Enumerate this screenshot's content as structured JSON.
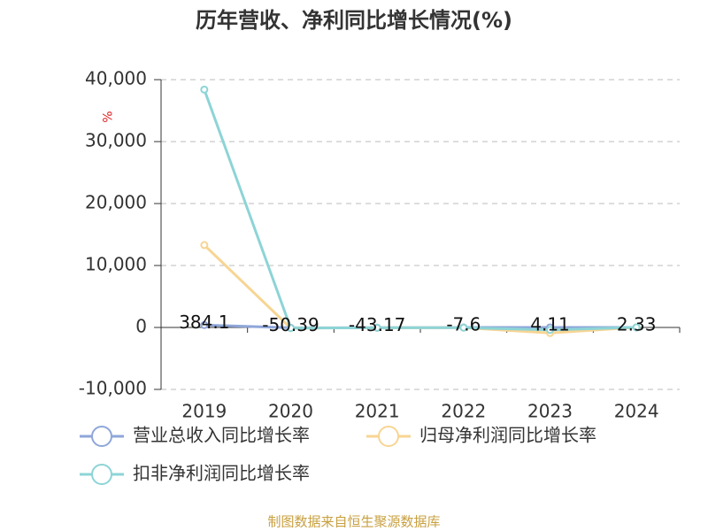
{
  "chart_data": {
    "type": "line",
    "title": "历年营收、净利同比增长情况(%)",
    "y_label": "%",
    "categories": [
      "2019",
      "2020",
      "2021",
      "2022",
      "2023",
      "2024"
    ],
    "series": [
      {
        "name": "营业总收入同比增长率",
        "color": "#8ea6d9",
        "values": [
          384.1,
          -50.39,
          -43.17,
          -7.6,
          4.11,
          2.33
        ],
        "show_labels": true
      },
      {
        "name": "归母净利润同比增长率",
        "color": "#f7d593",
        "values": [
          13300,
          -100,
          -50,
          -30,
          -900,
          20
        ]
      },
      {
        "name": "扣非净利润同比增长率",
        "color": "#8dd4d6",
        "values": [
          38400,
          -100,
          -50,
          -30,
          -400,
          20
        ]
      }
    ],
    "ylim": [
      -10000,
      40000
    ],
    "yticks": [
      {
        "value": -10000,
        "label": "-10,000"
      },
      0,
      {
        "value": 10000,
        "label": "10,000"
      },
      {
        "value": 20000,
        "label": "20,000"
      },
      {
        "value": 30000,
        "label": "30,000"
      },
      {
        "value": 40000,
        "label": "40,000"
      }
    ],
    "grid": true,
    "source": "制图数据来自恒生聚源数据库"
  }
}
